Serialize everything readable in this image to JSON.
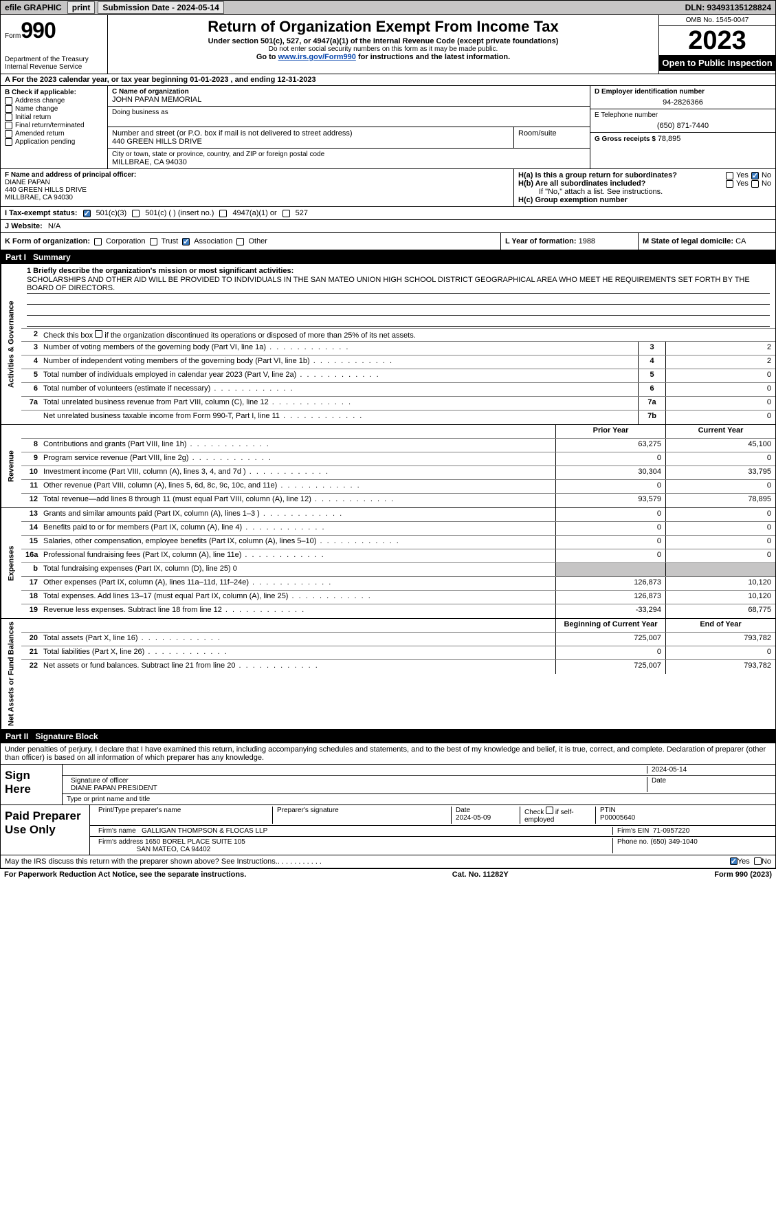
{
  "topbar": {
    "efile": "efile GRAPHIC",
    "print": "print",
    "submission": "Submission Date - 2024-05-14",
    "dln": "DLN: 93493135128824"
  },
  "header": {
    "form_prefix": "Form",
    "form_num": "990",
    "dept": "Department of the Treasury Internal Revenue Service",
    "title": "Return of Organization Exempt From Income Tax",
    "sub1": "Under section 501(c), 527, or 4947(a)(1) of the Internal Revenue Code (except private foundations)",
    "sub2": "Do not enter social security numbers on this form as it may be made public.",
    "goto": "Go to www.irs.gov/Form990 for instructions and the latest information.",
    "goto_pre": "Go to ",
    "goto_link": "www.irs.gov/Form990",
    "goto_post": " for instructions and the latest information.",
    "omb": "OMB No. 1545-0047",
    "year": "2023",
    "inspect": "Open to Public Inspection"
  },
  "rowA": "A For the 2023 calendar year, or tax year beginning 01-01-2023   , and ending 12-31-2023",
  "sectionB": {
    "label": "B Check if applicable:",
    "items": [
      "Address change",
      "Name change",
      "Initial return",
      "Final return/terminated",
      "Amended return",
      "Application pending"
    ]
  },
  "sectionC": {
    "name_lbl": "C Name of organization",
    "name": "JOHN PAPAN MEMORIAL",
    "dba_lbl": "Doing business as",
    "dba": "",
    "street_lbl": "Number and street (or P.O. box if mail is not delivered to street address)",
    "room_lbl": "Room/suite",
    "street": "440 GREEN HILLS DRIVE",
    "city_lbl": "City or town, state or province, country, and ZIP or foreign postal code",
    "city": "MILLBRAE, CA  94030"
  },
  "sectionD": {
    "ein_lbl": "D Employer identification number",
    "ein": "94-2826366",
    "tel_lbl": "E Telephone number",
    "tel": "(650) 871-7440",
    "gross_lbl": "G Gross receipts $",
    "gross": "78,895"
  },
  "sectionF": {
    "lbl": "F Name and address of principal officer:",
    "name": "DIANE PAPAN",
    "addr1": "440 GREEN HILLS DRIVE",
    "addr2": "MILLBRAE, CA  94030"
  },
  "sectionH": {
    "ha": "H(a)  Is this a group return for subordinates?",
    "hb": "H(b)  Are all subordinates included?",
    "hb_note": "If \"No,\" attach a list. See instructions.",
    "hc": "H(c)  Group exemption number",
    "yes": "Yes",
    "no": "No"
  },
  "rowI": {
    "lbl": "I   Tax-exempt status:",
    "o1": "501(c)(3)",
    "o2": "501(c) (  ) (insert no.)",
    "o3": "4947(a)(1) or",
    "o4": "527"
  },
  "rowJ": {
    "lbl": "J   Website:",
    "val": "N/A"
  },
  "rowK": {
    "lbl": "K Form of organization:",
    "o1": "Corporation",
    "o2": "Trust",
    "o3": "Association",
    "o4": "Other"
  },
  "rowL": {
    "lbl": "L Year of formation:",
    "val": "1988"
  },
  "rowM": {
    "lbl": "M State of legal domicile:",
    "val": "CA"
  },
  "partI": {
    "num": "Part I",
    "title": "Summary"
  },
  "mission": {
    "lbl": "1  Briefly describe the organization's mission or most significant activities:",
    "text": "SCHOLARSHIPS AND OTHER AID WILL BE PROVIDED TO INDIVIDUALS IN THE SAN MATEO UNION HIGH SCHOOL DISTRICT GEOGRAPHICAL AREA WHO MEET HE REQUIREMENTS SET FORTH BY THE BOARD OF DIRECTORS."
  },
  "line2": "2   Check this box      if the organization discontinued its operations or disposed of more than 25% of its net assets.",
  "side_labels": {
    "gov": "Activities & Governance",
    "rev": "Revenue",
    "exp": "Expenses",
    "net": "Net Assets or Fund Balances"
  },
  "gov_lines": [
    {
      "n": "3",
      "d": "Number of voting members of the governing body (Part VI, line 1a)",
      "box": "3",
      "v": "2"
    },
    {
      "n": "4",
      "d": "Number of independent voting members of the governing body (Part VI, line 1b)",
      "box": "4",
      "v": "2"
    },
    {
      "n": "5",
      "d": "Total number of individuals employed in calendar year 2023 (Part V, line 2a)",
      "box": "5",
      "v": "0"
    },
    {
      "n": "6",
      "d": "Total number of volunteers (estimate if necessary)",
      "box": "6",
      "v": "0"
    },
    {
      "n": "7a",
      "d": "Total unrelated business revenue from Part VIII, column (C), line 12",
      "box": "7a",
      "v": "0"
    },
    {
      "n": "",
      "d": "Net unrelated business taxable income from Form 990-T, Part I, line 11",
      "box": "7b",
      "v": "0"
    }
  ],
  "col_hdrs": {
    "prior": "Prior Year",
    "current": "Current Year",
    "begin": "Beginning of Current Year",
    "end": "End of Year"
  },
  "rev_lines": [
    {
      "n": "8",
      "d": "Contributions and grants (Part VIII, line 1h)",
      "p": "63,275",
      "c": "45,100"
    },
    {
      "n": "9",
      "d": "Program service revenue (Part VIII, line 2g)",
      "p": "0",
      "c": "0"
    },
    {
      "n": "10",
      "d": "Investment income (Part VIII, column (A), lines 3, 4, and 7d )",
      "p": "30,304",
      "c": "33,795"
    },
    {
      "n": "11",
      "d": "Other revenue (Part VIII, column (A), lines 5, 6d, 8c, 9c, 10c, and 11e)",
      "p": "0",
      "c": "0"
    },
    {
      "n": "12",
      "d": "Total revenue—add lines 8 through 11 (must equal Part VIII, column (A), line 12)",
      "p": "93,579",
      "c": "78,895"
    }
  ],
  "exp_lines": [
    {
      "n": "13",
      "d": "Grants and similar amounts paid (Part IX, column (A), lines 1–3 )",
      "p": "0",
      "c": "0"
    },
    {
      "n": "14",
      "d": "Benefits paid to or for members (Part IX, column (A), line 4)",
      "p": "0",
      "c": "0"
    },
    {
      "n": "15",
      "d": "Salaries, other compensation, employee benefits (Part IX, column (A), lines 5–10)",
      "p": "0",
      "c": "0"
    },
    {
      "n": "16a",
      "d": "Professional fundraising fees (Part IX, column (A), line 11e)",
      "p": "0",
      "c": "0"
    },
    {
      "n": "b",
      "d": "Total fundraising expenses (Part IX, column (D), line 25) 0",
      "p": "grey",
      "c": "grey"
    },
    {
      "n": "17",
      "d": "Other expenses (Part IX, column (A), lines 11a–11d, 11f–24e)",
      "p": "126,873",
      "c": "10,120"
    },
    {
      "n": "18",
      "d": "Total expenses. Add lines 13–17 (must equal Part IX, column (A), line 25)",
      "p": "126,873",
      "c": "10,120"
    },
    {
      "n": "19",
      "d": "Revenue less expenses. Subtract line 18 from line 12",
      "p": "-33,294",
      "c": "68,775"
    }
  ],
  "net_lines": [
    {
      "n": "20",
      "d": "Total assets (Part X, line 16)",
      "p": "725,007",
      "c": "793,782"
    },
    {
      "n": "21",
      "d": "Total liabilities (Part X, line 26)",
      "p": "0",
      "c": "0"
    },
    {
      "n": "22",
      "d": "Net assets or fund balances. Subtract line 21 from line 20",
      "p": "725,007",
      "c": "793,782"
    }
  ],
  "partII": {
    "num": "Part II",
    "title": "Signature Block"
  },
  "perjury": "Under penalties of perjury, I declare that I have examined this return, including accompanying schedules and statements, and to the best of my knowledge and belief, it is true, correct, and complete. Declaration of preparer (other than officer) is based on all information of which preparer has any knowledge.",
  "sign": {
    "lbl": "Sign Here",
    "sig_officer": "Signature of officer",
    "date": "2024-05-14",
    "name_title": "DIANE PAPAN  PRESIDENT",
    "type_lbl": "Type or print name and title",
    "date_lbl": "Date"
  },
  "paid": {
    "lbl": "Paid Preparer Use Only",
    "print_lbl": "Print/Type preparer's name",
    "sig_lbl": "Preparer's signature",
    "date_lbl": "Date",
    "date": "2024-05-09",
    "check_lbl": "Check      if self-employed",
    "ptin_lbl": "PTIN",
    "ptin": "P00005640",
    "firm_name_lbl": "Firm's name",
    "firm_name": "GALLIGAN THOMPSON & FLOCAS LLP",
    "firm_ein_lbl": "Firm's EIN",
    "firm_ein": "71-0957220",
    "firm_addr_lbl": "Firm's address",
    "firm_addr1": "1650 BOREL PLACE SUITE 105",
    "firm_addr2": "SAN MATEO, CA  94402",
    "phone_lbl": "Phone no.",
    "phone": "(650) 349-1040"
  },
  "discuss": "May the IRS discuss this return with the preparer shown above? See Instructions.",
  "footer": {
    "left": "For Paperwork Reduction Act Notice, see the separate instructions.",
    "mid": "Cat. No. 11282Y",
    "right": "Form 990 (2023)"
  }
}
